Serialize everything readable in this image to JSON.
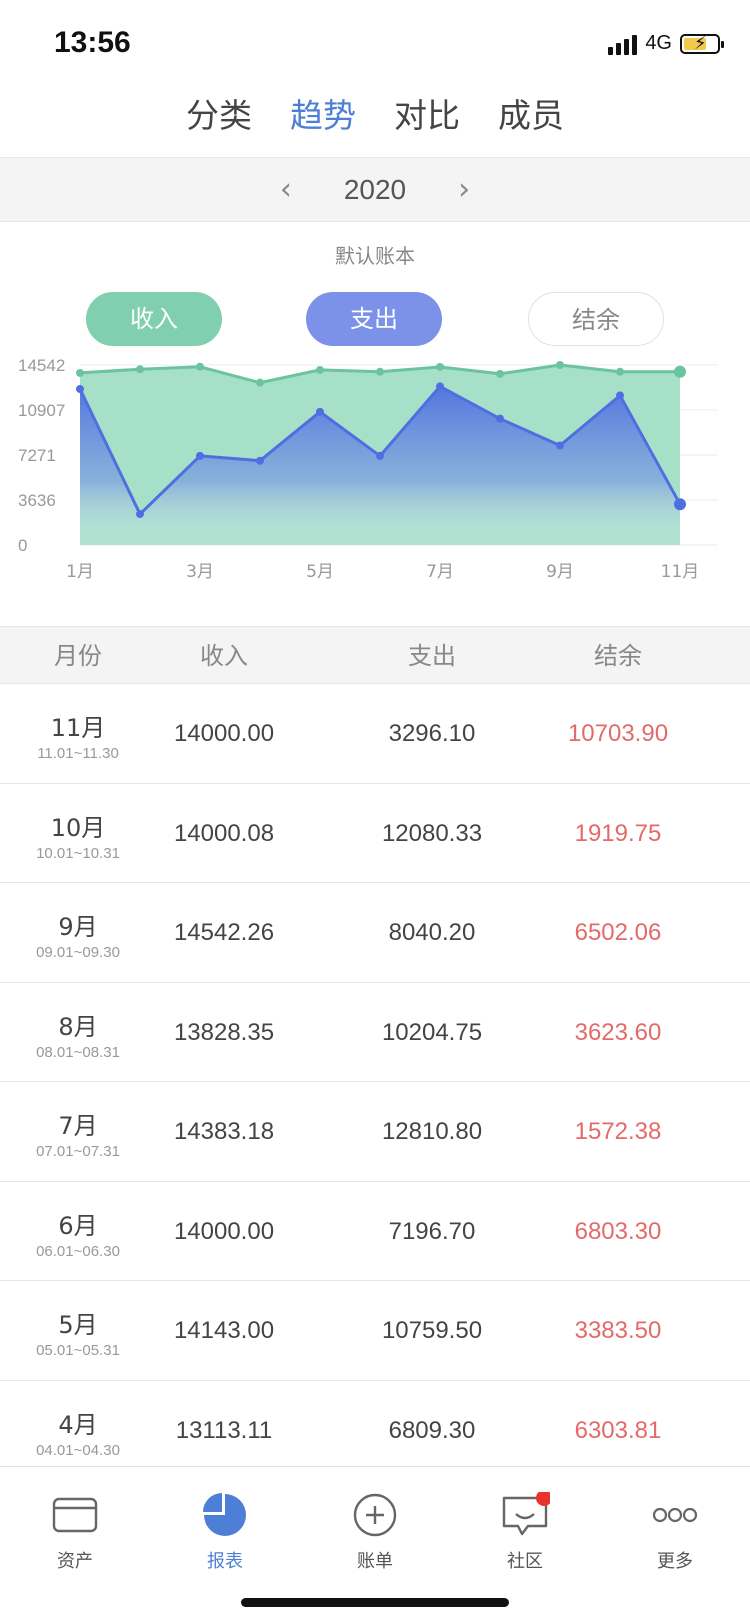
{
  "status": {
    "time": "13:56",
    "network": "4G"
  },
  "top_tabs": [
    {
      "label": "分类",
      "active": false
    },
    {
      "label": "趋势",
      "active": true
    },
    {
      "label": "对比",
      "active": false
    },
    {
      "label": "成员",
      "active": false
    }
  ],
  "year_selector": {
    "year": "2020",
    "prev_icon": "chevron-left-icon",
    "next_icon": "chevron-right-icon"
  },
  "book_name": "默认账本",
  "toggles": {
    "income": "收入",
    "expense": "支出",
    "balance": "结余"
  },
  "colors": {
    "accent": "#4d7fd6",
    "income": "#6cc3a0",
    "expense": "#4f6fe0",
    "balance_text": "#e46a6a"
  },
  "chart_data": {
    "type": "area",
    "x": [
      "1月",
      "2月",
      "3月",
      "4月",
      "5月",
      "6月",
      "7月",
      "8月",
      "9月",
      "10月",
      "11月"
    ],
    "x_tick_labels": [
      "1月",
      "3月",
      "5月",
      "7月",
      "9月",
      "11月"
    ],
    "y_ticks": [
      "14542",
      "10907",
      "7271",
      "3636",
      "0"
    ],
    "ylim": [
      0,
      14542
    ],
    "grid": true,
    "series": [
      {
        "name": "收入",
        "values": [
          13900,
          14200,
          14400,
          13113.11,
          14143.0,
          14000.0,
          14383.18,
          13828.35,
          14542.26,
          14000.08,
          14000.0
        ]
      },
      {
        "name": "支出",
        "values": [
          12600,
          2500,
          7200,
          6809.3,
          10759.5,
          7196.7,
          12810.8,
          10204.75,
          8040.2,
          12080.33,
          3296.1
        ]
      }
    ]
  },
  "table": {
    "headers": [
      "月份",
      "收入",
      "支出",
      "结余"
    ],
    "rows": [
      {
        "month": "11月",
        "range": "11.01~11.30",
        "income": "14000.00",
        "expense": "3296.10",
        "balance": "10703.90"
      },
      {
        "month": "10月",
        "range": "10.01~10.31",
        "income": "14000.08",
        "expense": "12080.33",
        "balance": "1919.75"
      },
      {
        "month": "9月",
        "range": "09.01~09.30",
        "income": "14542.26",
        "expense": "8040.20",
        "balance": "6502.06"
      },
      {
        "month": "8月",
        "range": "08.01~08.31",
        "income": "13828.35",
        "expense": "10204.75",
        "balance": "3623.60"
      },
      {
        "month": "7月",
        "range": "07.01~07.31",
        "income": "14383.18",
        "expense": "12810.80",
        "balance": "1572.38"
      },
      {
        "month": "6月",
        "range": "06.01~06.30",
        "income": "14000.00",
        "expense": "7196.70",
        "balance": "6803.30"
      },
      {
        "month": "5月",
        "range": "05.01~05.31",
        "income": "14143.00",
        "expense": "10759.50",
        "balance": "3383.50"
      },
      {
        "month": "4月",
        "range": "04.01~04.30",
        "income": "13113.11",
        "expense": "6809.30",
        "balance": "6303.81"
      }
    ]
  },
  "bottom_nav": [
    {
      "label": "资产",
      "icon": "card-icon",
      "active": false
    },
    {
      "label": "报表",
      "icon": "pie-chart-icon",
      "active": true
    },
    {
      "label": "账单",
      "icon": "plus-circle-icon",
      "active": false
    },
    {
      "label": "社区",
      "icon": "chat-icon",
      "active": false,
      "badge": true
    },
    {
      "label": "更多",
      "icon": "more-icon",
      "active": false
    }
  ]
}
